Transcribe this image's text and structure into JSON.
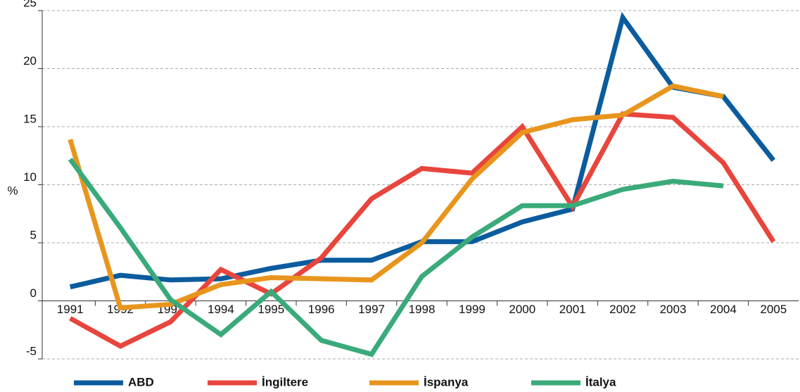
{
  "chart_data": {
    "type": "line",
    "y_label": "%",
    "categories": [
      "1991",
      "1992",
      "1993",
      "1994",
      "1995",
      "1996",
      "1997",
      "1998",
      "1999",
      "2000",
      "2001",
      "2002",
      "2003",
      "2004",
      "2005"
    ],
    "series": [
      {
        "name": "ABD",
        "color": "#0b5c9e",
        "values": [
          1.2,
          2.2,
          1.8,
          1.9,
          2.8,
          3.5,
          3.5,
          5.1,
          5.1,
          6.8,
          7.9,
          24.4,
          18.4,
          17.6,
          12.1
        ]
      },
      {
        "name": "İngiltere",
        "color": "#e8453c",
        "values": [
          -1.5,
          -3.9,
          -1.8,
          2.7,
          0.6,
          3.7,
          8.8,
          11.4,
          11.0,
          15.0,
          8.1,
          16.1,
          15.8,
          11.9,
          5.1
        ]
      },
      {
        "name": "İspanya",
        "color": "#e8951e",
        "values": [
          13.9,
          -0.6,
          -0.3,
          1.4,
          2.0,
          1.9,
          1.8,
          5.0,
          10.5,
          14.5,
          15.6,
          16.0,
          18.5,
          17.6,
          null
        ]
      },
      {
        "name": "İtalya",
        "color": "#3aaa7a",
        "values": [
          12.2,
          6.3,
          0.1,
          -2.9,
          0.8,
          -3.4,
          -4.6,
          2.1,
          5.5,
          8.2,
          8.2,
          9.6,
          10.3,
          9.9,
          null
        ]
      }
    ],
    "ylim": [
      -5,
      25
    ],
    "yticks": [
      -5,
      0,
      5,
      10,
      15,
      20,
      25
    ],
    "grid": true,
    "legend": "bottom"
  }
}
